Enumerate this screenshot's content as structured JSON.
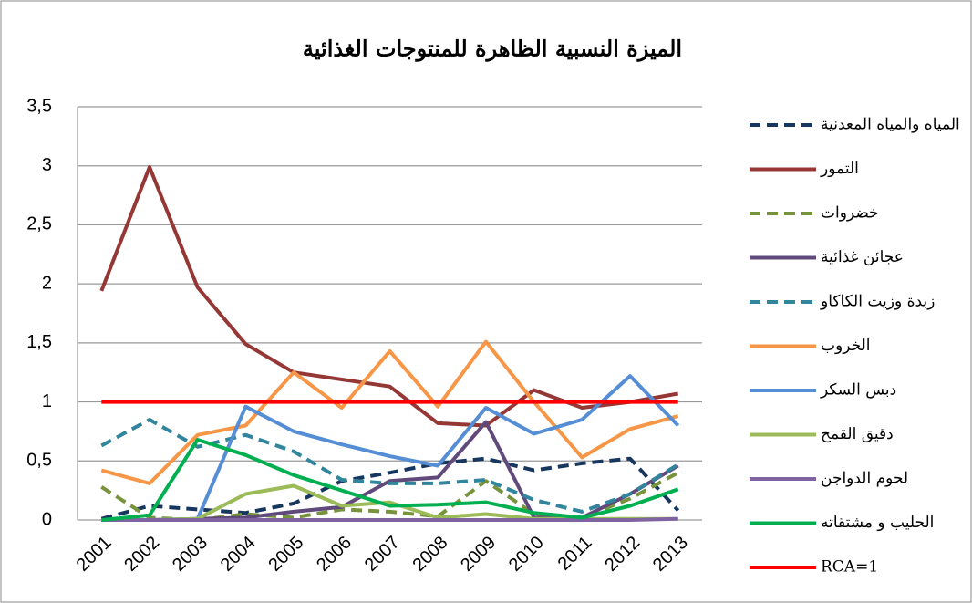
{
  "chart_data": {
    "type": "line",
    "title": "الميزة النسبية الظاهرة للمنتوجات الغذائية",
    "categories": [
      "2001",
      "2002",
      "2003",
      "2004",
      "2005",
      "2006",
      "2007",
      "2008",
      "2009",
      "2010",
      "2011",
      "2012",
      "2013"
    ],
    "ylim": [
      0,
      3.5
    ],
    "yticks": [
      0,
      {
        "value": 0.5,
        "label": "0,5"
      },
      1,
      {
        "value": 1.5,
        "label": "1,5"
      },
      2,
      {
        "value": 2.5,
        "label": "2,5"
      },
      3,
      {
        "value": 3.5,
        "label": "3,5"
      }
    ],
    "grid": true,
    "legend": "right",
    "series": [
      {
        "name": "المياه والمياه المعدنية",
        "color": "#17375e",
        "dashed": true,
        "values": [
          0.01,
          0.12,
          0.09,
          0.06,
          0.14,
          0.33,
          0.4,
          0.48,
          0.52,
          0.42,
          0.48,
          0.52,
          0.08
        ]
      },
      {
        "name": "التمور",
        "color": "#953735",
        "dashed": false,
        "values": [
          1.94,
          2.99,
          1.97,
          1.49,
          1.25,
          1.19,
          1.13,
          0.82,
          0.8,
          1.1,
          0.95,
          1.0,
          1.07
        ]
      },
      {
        "name": "خضروات",
        "color": "#77933c",
        "dashed": true,
        "values": [
          0.28,
          0.02,
          0,
          0.05,
          0.02,
          0.09,
          0.07,
          0.03,
          0.33,
          0.05,
          0.02,
          0.18,
          0.4
        ]
      },
      {
        "name": "عجائن غذائية",
        "color": "#604a7b",
        "dashed": false,
        "values": [
          0,
          0,
          0.01,
          0.02,
          0.07,
          0.11,
          0.33,
          0.36,
          0.83,
          0.02,
          0.02,
          0.22,
          0.46
        ]
      },
      {
        "name": "زبدة وزيت الكاكاو",
        "color": "#31859c",
        "dashed": true,
        "values": [
          0.63,
          0.85,
          0.62,
          0.72,
          0.58,
          0.34,
          0.31,
          0.31,
          0.34,
          0.17,
          0.07,
          0.22,
          0.47
        ]
      },
      {
        "name": "الخروب",
        "color": "#f79646",
        "dashed": false,
        "values": [
          0.42,
          0.31,
          0.72,
          0.8,
          1.25,
          0.95,
          1.43,
          0.96,
          1.51,
          1.0,
          0.53,
          0.77,
          0.88
        ]
      },
      {
        "name": "دبس السكر",
        "color": "#558ed5",
        "dashed": false,
        "values": [
          0,
          0,
          0.01,
          0.96,
          0.75,
          0.64,
          0.54,
          0.46,
          0.95,
          0.73,
          0.85,
          1.22,
          0.8
        ]
      },
      {
        "name": "دقيق القمح",
        "color": "#9bbb59",
        "dashed": false,
        "values": [
          0,
          0,
          0.01,
          0.22,
          0.29,
          0.12,
          0.15,
          0.02,
          0.05,
          0.01,
          0.01,
          0.01,
          0.01
        ]
      },
      {
        "name": "لحوم الدواجن",
        "color": "#8064a2",
        "dashed": false,
        "values": [
          0,
          0,
          0,
          0,
          0,
          0,
          0,
          0,
          0,
          0,
          0,
          0,
          0.01
        ]
      },
      {
        "name": "الحليب و مشتقاته",
        "color": "#00b050",
        "dashed": false,
        "values": [
          0,
          0.04,
          0.68,
          0.55,
          0.38,
          0.25,
          0.12,
          0.13,
          0.15,
          0.06,
          0.02,
          0.12,
          0.26
        ]
      },
      {
        "name": "RCA=1",
        "color": "#ff0000",
        "dashed": false,
        "values": [
          1,
          1,
          1,
          1,
          1,
          1,
          1,
          1,
          1,
          1,
          1,
          1,
          1
        ]
      }
    ]
  }
}
